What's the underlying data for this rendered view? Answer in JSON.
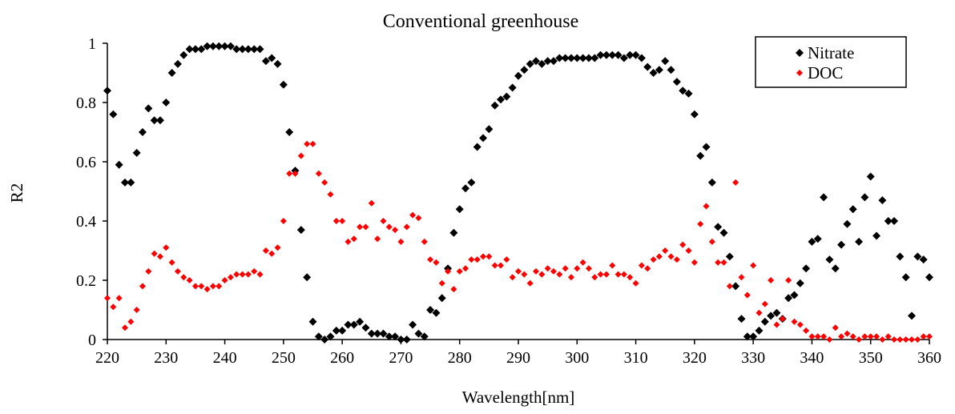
{
  "chart_data": {
    "type": "scatter",
    "title": "Conventional greenhouse",
    "xlabel": "Wavelength[nm]",
    "ylabel": "R2",
    "xlim": [
      220,
      360
    ],
    "ylim": [
      0,
      1
    ],
    "xticks": [
      220,
      230,
      240,
      250,
      260,
      270,
      280,
      290,
      300,
      310,
      320,
      330,
      340,
      350,
      360
    ],
    "yticks": [
      0,
      0.2,
      0.4,
      0.6,
      0.8,
      1
    ],
    "ytick_labels": [
      "0",
      "0.2",
      "0.4",
      "0.6",
      "0.8",
      "1"
    ],
    "grid": false,
    "legend_position": "top-right",
    "series": [
      {
        "name": "Nitrate",
        "color": "#000000",
        "marker": "diamond",
        "x": [
          220,
          221,
          222,
          223,
          224,
          225,
          226,
          227,
          228,
          229,
          230,
          231,
          232,
          233,
          234,
          235,
          236,
          237,
          238,
          239,
          240,
          241,
          242,
          243,
          244,
          245,
          246,
          247,
          248,
          249,
          250,
          251,
          252,
          253,
          254,
          255,
          256,
          257,
          258,
          259,
          260,
          261,
          262,
          263,
          264,
          265,
          266,
          267,
          268,
          269,
          270,
          271,
          272,
          273,
          274,
          275,
          276,
          277,
          278,
          279,
          280,
          281,
          282,
          283,
          284,
          285,
          286,
          287,
          288,
          289,
          290,
          291,
          292,
          293,
          294,
          295,
          296,
          297,
          298,
          299,
          300,
          301,
          302,
          303,
          304,
          305,
          306,
          307,
          308,
          309,
          310,
          311,
          312,
          313,
          314,
          315,
          316,
          317,
          318,
          319,
          320,
          321,
          322,
          323,
          324,
          325,
          326,
          327,
          328,
          329,
          330,
          331,
          332,
          333,
          334,
          335,
          336,
          337,
          338,
          339,
          340,
          341,
          342,
          343,
          344,
          345,
          346,
          347,
          348,
          349,
          350,
          351,
          352,
          353,
          354,
          355,
          356,
          357,
          358,
          359,
          360
        ],
        "y": [
          0.84,
          0.76,
          0.59,
          0.53,
          0.53,
          0.63,
          0.7,
          0.78,
          0.74,
          0.74,
          0.8,
          0.9,
          0.93,
          0.96,
          0.98,
          0.98,
          0.98,
          0.99,
          0.99,
          0.99,
          0.99,
          0.99,
          0.98,
          0.98,
          0.98,
          0.98,
          0.98,
          0.94,
          0.95,
          0.93,
          0.86,
          0.7,
          0.57,
          0.37,
          0.21,
          0.06,
          0.01,
          0.0,
          0.01,
          0.03,
          0.03,
          0.05,
          0.05,
          0.06,
          0.04,
          0.02,
          0.02,
          0.02,
          0.01,
          0.01,
          0.0,
          0.0,
          0.05,
          0.02,
          0.01,
          0.1,
          0.09,
          0.14,
          0.24,
          0.36,
          0.44,
          0.51,
          0.53,
          0.65,
          0.68,
          0.71,
          0.79,
          0.81,
          0.82,
          0.85,
          0.89,
          0.91,
          0.93,
          0.94,
          0.93,
          0.94,
          0.94,
          0.95,
          0.95,
          0.95,
          0.95,
          0.95,
          0.95,
          0.95,
          0.96,
          0.96,
          0.96,
          0.96,
          0.95,
          0.96,
          0.96,
          0.95,
          0.92,
          0.9,
          0.91,
          0.94,
          0.91,
          0.87,
          0.84,
          0.83,
          0.76,
          0.62,
          0.65,
          0.53,
          0.38,
          0.36,
          0.28,
          0.18,
          0.07,
          0.01,
          0.01,
          0.03,
          0.06,
          0.08,
          0.09,
          0.07,
          0.14,
          0.15,
          0.19,
          0.24,
          0.33,
          0.34,
          0.48,
          0.27,
          0.24,
          0.32,
          0.39,
          0.44,
          0.33,
          0.48,
          0.55,
          0.35,
          0.47,
          0.4,
          0.4,
          0.28,
          0.21,
          0.08,
          0.28,
          0.27,
          0.21
        ]
      },
      {
        "name": "DOC",
        "color": "#ff0000",
        "marker": "diamond",
        "x": [
          220,
          221,
          222,
          223,
          224,
          225,
          226,
          227,
          228,
          229,
          230,
          231,
          232,
          233,
          234,
          235,
          236,
          237,
          238,
          239,
          240,
          241,
          242,
          243,
          244,
          245,
          246,
          247,
          248,
          249,
          250,
          251,
          252,
          253,
          254,
          255,
          256,
          257,
          258,
          259,
          260,
          261,
          262,
          263,
          264,
          265,
          266,
          267,
          268,
          269,
          270,
          271,
          272,
          273,
          274,
          275,
          276,
          277,
          278,
          279,
          280,
          281,
          282,
          283,
          284,
          285,
          286,
          287,
          288,
          289,
          290,
          291,
          292,
          293,
          294,
          295,
          296,
          297,
          298,
          299,
          300,
          301,
          302,
          303,
          304,
          305,
          306,
          307,
          308,
          309,
          310,
          311,
          312,
          313,
          314,
          315,
          316,
          317,
          318,
          319,
          320,
          321,
          322,
          323,
          324,
          325,
          326,
          327,
          328,
          329,
          330,
          331,
          332,
          333,
          334,
          335,
          336,
          337,
          338,
          339,
          340,
          341,
          342,
          343,
          344,
          345,
          346,
          347,
          348,
          349,
          350,
          351,
          352,
          353,
          354,
          355,
          356,
          357,
          358,
          359,
          360
        ],
        "y": [
          0.14,
          0.11,
          0.14,
          0.04,
          0.06,
          0.1,
          0.18,
          0.23,
          0.29,
          0.28,
          0.31,
          0.26,
          0.23,
          0.21,
          0.2,
          0.18,
          0.18,
          0.17,
          0.18,
          0.18,
          0.2,
          0.21,
          0.22,
          0.22,
          0.22,
          0.23,
          0.22,
          0.3,
          0.29,
          0.31,
          0.4,
          0.56,
          0.56,
          0.62,
          0.66,
          0.66,
          0.56,
          0.53,
          0.49,
          0.4,
          0.4,
          0.33,
          0.34,
          0.38,
          0.38,
          0.46,
          0.34,
          0.4,
          0.38,
          0.37,
          0.33,
          0.38,
          0.42,
          0.41,
          0.33,
          0.27,
          0.26,
          0.19,
          0.23,
          0.17,
          0.23,
          0.24,
          0.27,
          0.27,
          0.28,
          0.28,
          0.25,
          0.25,
          0.27,
          0.21,
          0.23,
          0.22,
          0.19,
          0.23,
          0.22,
          0.24,
          0.23,
          0.22,
          0.24,
          0.21,
          0.24,
          0.26,
          0.24,
          0.21,
          0.22,
          0.22,
          0.25,
          0.22,
          0.22,
          0.21,
          0.19,
          0.25,
          0.24,
          0.27,
          0.28,
          0.3,
          0.28,
          0.27,
          0.32,
          0.3,
          0.26,
          0.39,
          0.45,
          0.33,
          0.26,
          0.26,
          0.18,
          0.53,
          0.21,
          0.15,
          0.25,
          0.09,
          0.12,
          0.2,
          0.05,
          0.07,
          0.2,
          0.06,
          0.05,
          0.03,
          0.01,
          0.01,
          0.01,
          0.0,
          0.04,
          0.01,
          0.02,
          0.01,
          0.0,
          0.01,
          0.01,
          0.01,
          0.0,
          0.01,
          0.0,
          0.0,
          0.0,
          0.0,
          0.0,
          0.01,
          0.01
        ]
      }
    ]
  }
}
